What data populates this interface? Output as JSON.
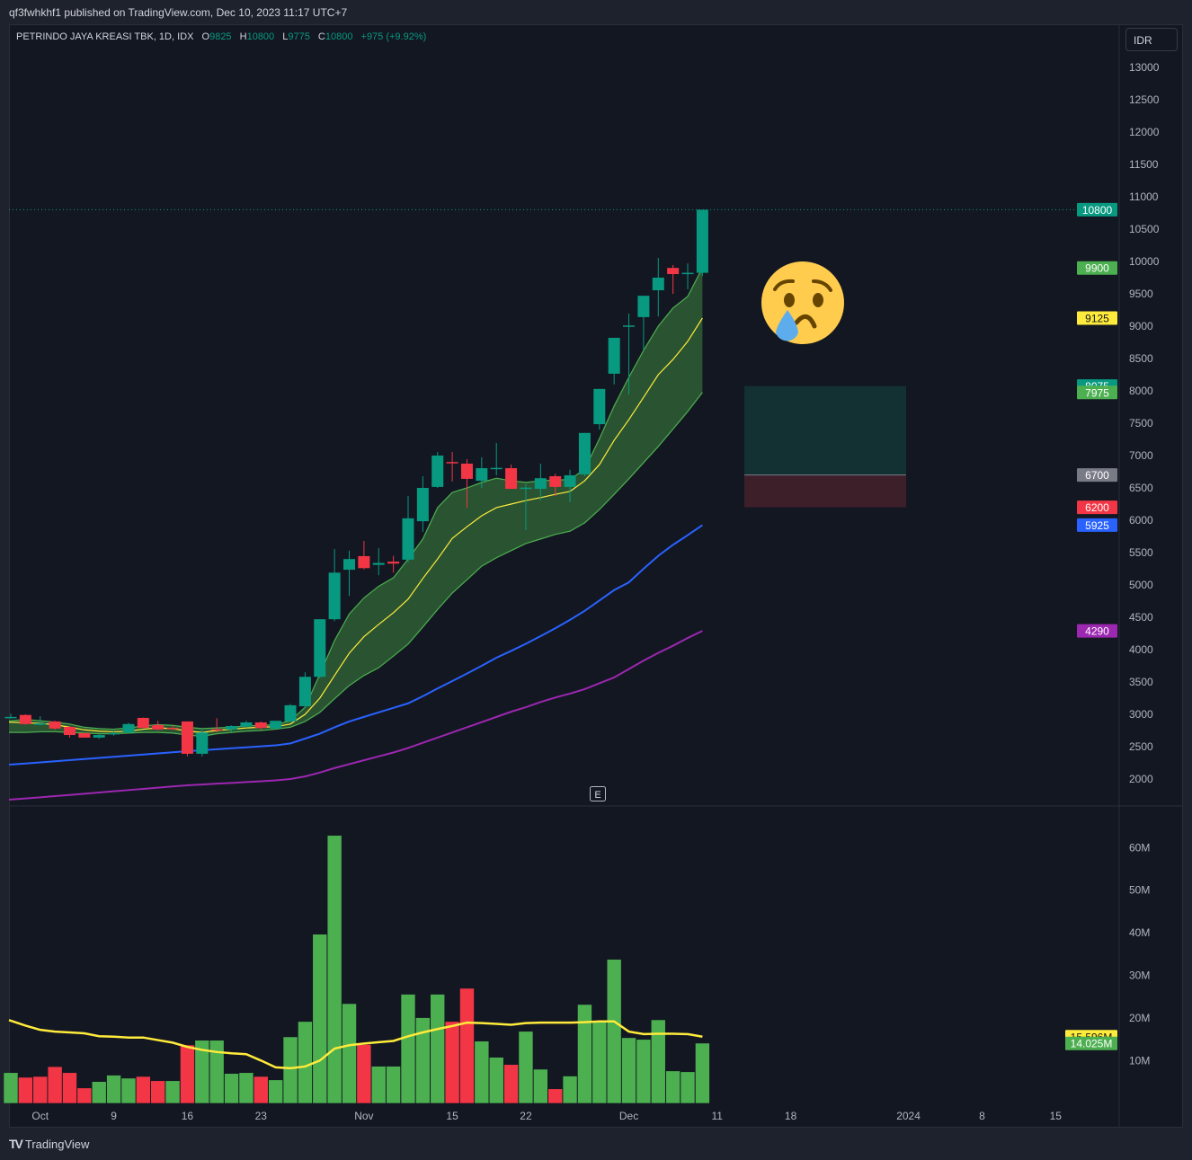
{
  "header": {
    "published": "qf3fwhkhf1 published on TradingView.com, Dec 10, 2023 11:17 UTC+7",
    "symbol": "PETRINDO JAYA KREASI TBK, 1D, IDX",
    "o_label": "O",
    "o": "9825",
    "h_label": "H",
    "h": "10800",
    "l_label": "L",
    "l": "9775",
    "c_label": "C",
    "c": "10800",
    "change": "+975 (+9.92%)",
    "currency_button": "IDR"
  },
  "footer": {
    "logo_text": "TradingView",
    "logo_mark": "TV"
  },
  "earnings_marker": "E",
  "colors": {
    "up": "#089981",
    "down": "#f23645",
    "vol_up": "#4caf50",
    "vol_down": "#f23645",
    "band": "#4caf50",
    "band_fill": "#2b5733",
    "mid": "#ffeb3b",
    "ma_blue": "#2962ff",
    "ma_purple": "#9c27b0",
    "vol_ma": "#ffeb3b",
    "target_zone": "#133033",
    "stop_zone": "#3d1f2a"
  },
  "emoji": "crying-face",
  "chart_data": {
    "type": "candlestick",
    "price_ylim": [
      2000,
      13000
    ],
    "price_ticks": [
      "2000",
      "2500",
      "3000",
      "3500",
      "4000",
      "4500",
      "5000",
      "5500",
      "6000",
      "6500",
      "7000",
      "7500",
      "8000",
      "8500",
      "9000",
      "9500",
      "10000",
      "10500",
      "11000",
      "11500",
      "12000",
      "12500",
      "13000"
    ],
    "x_ticks": [
      {
        "bar": 2,
        "label": "Oct"
      },
      {
        "bar": 7,
        "label": "9"
      },
      {
        "bar": 12,
        "label": "16"
      },
      {
        "bar": 17,
        "label": "23"
      },
      {
        "bar": 24,
        "label": "Nov"
      },
      {
        "bar": 30,
        "label": "15"
      },
      {
        "bar": 35,
        "label": "22"
      },
      {
        "bar": 42,
        "label": "Dec"
      },
      {
        "bar": 48,
        "label": "11"
      },
      {
        "bar": 53,
        "label": "18"
      },
      {
        "bar": 61,
        "label": "2024"
      },
      {
        "bar": 66,
        "label": "8"
      },
      {
        "bar": 71,
        "label": "15"
      }
    ],
    "candles_ohlc": [
      [
        2950,
        3010,
        2930,
        2960
      ],
      [
        2990,
        3000,
        2840,
        2850
      ],
      [
        2850,
        2970,
        2830,
        2860
      ],
      [
        2890,
        2900,
        2760,
        2780
      ],
      [
        2805,
        2820,
        2640,
        2680
      ],
      [
        2710,
        2720,
        2640,
        2640
      ],
      [
        2640,
        2700,
        2620,
        2680
      ],
      [
        2690,
        2760,
        2670,
        2710
      ],
      [
        2720,
        2870,
        2700,
        2850
      ],
      [
        2945,
        2950,
        2790,
        2790
      ],
      [
        2835,
        2900,
        2750,
        2765
      ],
      [
        2790,
        2830,
        2760,
        2780
      ],
      [
        2890,
        2890,
        2350,
        2390
      ],
      [
        2390,
        2780,
        2350,
        2720
      ],
      [
        2770,
        2940,
        2720,
        2760
      ],
      [
        2765,
        2830,
        2730,
        2820
      ],
      [
        2810,
        2900,
        2790,
        2875
      ],
      [
        2875,
        2890,
        2760,
        2790
      ],
      [
        2780,
        2900,
        2770,
        2900
      ],
      [
        2890,
        3160,
        2870,
        3140
      ],
      [
        3125,
        3650,
        3100,
        3580
      ],
      [
        3580,
        4470,
        3560,
        4470
      ],
      [
        4470,
        5555,
        4440,
        5190
      ],
      [
        5235,
        5530,
        4830,
        5400
      ],
      [
        5445,
        5680,
        5240,
        5260
      ],
      [
        5310,
        5570,
        5150,
        5340
      ],
      [
        5360,
        5450,
        5190,
        5330
      ],
      [
        5390,
        6375,
        5350,
        6030
      ],
      [
        5985,
        6680,
        5820,
        6500
      ],
      [
        6515,
        7055,
        6500,
        7000
      ],
      [
        6900,
        7055,
        6600,
        6880
      ],
      [
        6875,
        6945,
        6195,
        6640
      ],
      [
        6610,
        6975,
        6500,
        6805
      ],
      [
        6800,
        7195,
        6695,
        6810
      ],
      [
        6805,
        6860,
        6485,
        6485
      ],
      [
        6495,
        6560,
        5850,
        6505
      ],
      [
        6485,
        6875,
        6305,
        6650
      ],
      [
        6680,
        6720,
        6375,
        6515
      ],
      [
        6515,
        6780,
        6280,
        6695
      ],
      [
        6710,
        7350,
        6680,
        7350
      ],
      [
        7485,
        8030,
        7400,
        8030
      ],
      [
        8265,
        8820,
        8100,
        8820
      ],
      [
        8990,
        9195,
        7945,
        9010
      ],
      [
        9140,
        9470,
        8625,
        9470
      ],
      [
        9555,
        10055,
        9150,
        9750
      ],
      [
        9900,
        9945,
        9500,
        9805
      ],
      [
        9810,
        9970,
        9570,
        9825
      ],
      [
        9825,
        10800,
        9775,
        10800
      ]
    ],
    "band_upper": [
      2900,
      2920,
      2900,
      2880,
      2850,
      2800,
      2780,
      2770,
      2790,
      2820,
      2840,
      2830,
      2800,
      2780,
      2790,
      2800,
      2820,
      2830,
      2840,
      2900,
      3110,
      3620,
      4140,
      4550,
      4800,
      4980,
      5110,
      5400,
      5710,
      6195,
      6430,
      6500,
      6585,
      6650,
      6610,
      6585,
      6610,
      6620,
      6630,
      6790,
      7260,
      7765,
      8210,
      8625,
      9000,
      9280,
      9460,
      9900
    ],
    "band_middle": [
      2880,
      2870,
      2860,
      2840,
      2800,
      2760,
      2740,
      2730,
      2740,
      2770,
      2790,
      2780,
      2740,
      2720,
      2750,
      2770,
      2790,
      2800,
      2810,
      2850,
      3000,
      3250,
      3600,
      3945,
      4200,
      4390,
      4570,
      4780,
      5100,
      5400,
      5720,
      5900,
      6070,
      6195,
      6250,
      6305,
      6350,
      6400,
      6445,
      6610,
      6860,
      7235,
      7555,
      7900,
      8250,
      8485,
      8765,
      9125
    ],
    "band_lower": [
      2720,
      2720,
      2730,
      2730,
      2720,
      2710,
      2700,
      2700,
      2710,
      2720,
      2720,
      2710,
      2680,
      2660,
      2700,
      2720,
      2740,
      2750,
      2770,
      2800,
      2890,
      3030,
      3240,
      3445,
      3600,
      3720,
      3900,
      4085,
      4350,
      4620,
      4875,
      5080,
      5290,
      5420,
      5530,
      5640,
      5710,
      5780,
      5830,
      5960,
      6165,
      6400,
      6640,
      6890,
      7140,
      7410,
      7680,
      7975
    ],
    "ma_blue": [
      2222,
      2240,
      2257,
      2274,
      2292,
      2309,
      2326,
      2344,
      2361,
      2378,
      2396,
      2413,
      2430,
      2445,
      2460,
      2475,
      2490,
      2505,
      2520,
      2550,
      2625,
      2700,
      2800,
      2890,
      2960,
      3030,
      3100,
      3170,
      3280,
      3400,
      3514,
      3630,
      3750,
      3875,
      3980,
      4090,
      4208,
      4330,
      4460,
      4600,
      4760,
      4920,
      5040,
      5250,
      5450,
      5620,
      5770,
      5925
    ],
    "ma_purple": [
      1680,
      1699,
      1717,
      1736,
      1754,
      1773,
      1792,
      1810,
      1829,
      1847,
      1866,
      1885,
      1903,
      1915,
      1928,
      1940,
      1953,
      1965,
      1980,
      2000,
      2040,
      2100,
      2170,
      2230,
      2290,
      2350,
      2410,
      2480,
      2560,
      2640,
      2720,
      2800,
      2880,
      2960,
      3040,
      3110,
      3190,
      3260,
      3320,
      3390,
      3480,
      3570,
      3700,
      3830,
      3950,
      4060,
      4180,
      4290
    ],
    "position_tool": {
      "target": 8075,
      "entry": 6700,
      "stop": 6200
    },
    "price_badges": [
      {
        "value": "10800",
        "color": "#089981",
        "text": "#ffffff"
      },
      {
        "value": "9900",
        "color": "#4caf50",
        "text": "#ffffff"
      },
      {
        "value": "9125",
        "color": "#ffeb3b",
        "text": "#131722"
      },
      {
        "value": "8075",
        "color": "#089981",
        "text": "#ffffff"
      },
      {
        "value": "7975",
        "color": "#4caf50",
        "text": "#ffffff"
      },
      {
        "value": "6700",
        "color": "#787b86",
        "text": "#ffffff"
      },
      {
        "value": "6200",
        "color": "#f23645",
        "text": "#ffffff"
      },
      {
        "value": "5925",
        "color": "#2962ff",
        "text": "#ffffff"
      },
      {
        "value": "4290",
        "color": "#9c27b0",
        "text": "#ffffff"
      }
    ],
    "volume": {
      "unit": "M",
      "ylim": [
        0,
        65
      ],
      "ticks": [
        "10M",
        "20M",
        "30M",
        "40M",
        "50M",
        "60M"
      ],
      "values": [
        7.1,
        6.0,
        6.2,
        8.5,
        7.1,
        3.5,
        5.0,
        6.5,
        5.8,
        6.2,
        5.2,
        5.2,
        13.6,
        14.7,
        14.7,
        6.9,
        7.1,
        6.2,
        5.4,
        15.5,
        19.1,
        39.6,
        62.8,
        23.3,
        13.7,
        8.6,
        8.6,
        25.5,
        20.0,
        25.5,
        19.1,
        26.9,
        14.5,
        10.7,
        9.0,
        16.8,
        7.9,
        3.3,
        6.3,
        23.1,
        19.3,
        33.7,
        15.3,
        14.9,
        19.5,
        7.5,
        7.3,
        14.025
      ],
      "directions": [
        "up",
        "down",
        "down",
        "down",
        "down",
        "down",
        "up",
        "up",
        "up",
        "down",
        "down",
        "up",
        "down",
        "up",
        "up",
        "up",
        "up",
        "down",
        "up",
        "up",
        "up",
        "up",
        "up",
        "up",
        "down",
        "up",
        "up",
        "up",
        "up",
        "up",
        "down",
        "down",
        "up",
        "up",
        "down",
        "up",
        "up",
        "down",
        "up",
        "up",
        "up",
        "up",
        "up",
        "up",
        "up",
        "up",
        "up",
        "up"
      ],
      "ma": [
        19.5,
        18.2,
        17.2,
        16.8,
        16.6,
        16.4,
        15.7,
        15.6,
        15.4,
        15.4,
        14.8,
        14.2,
        13.2,
        12.5,
        12.0,
        11.7,
        11.5,
        10.0,
        8.4,
        8.2,
        8.6,
        10.0,
        12.8,
        13.6,
        14.0,
        14.3,
        14.6,
        15.7,
        16.6,
        17.4,
        18.1,
        18.9,
        18.8,
        18.6,
        18.4,
        18.8,
        18.9,
        18.9,
        18.9,
        19.0,
        19.2,
        19.2,
        16.8,
        16.2,
        16.3,
        16.3,
        16.2,
        15.596
      ],
      "badges": [
        {
          "value": "15.596M",
          "color": "#ffeb3b",
          "text": "#131722"
        },
        {
          "value": "14.025M",
          "color": "#4caf50",
          "text": "#ffffff"
        }
      ]
    }
  }
}
